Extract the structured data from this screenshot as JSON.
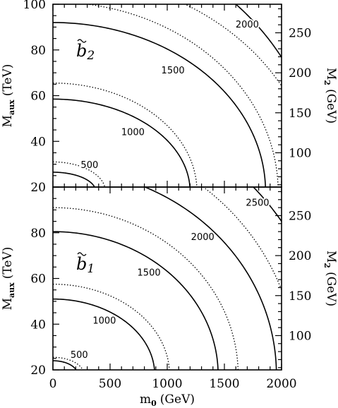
{
  "chart_data": [
    {
      "type": "line",
      "panel": "top",
      "label": "b̃2",
      "label_text": "b",
      "label_sub": "2",
      "xlabel": "",
      "ylabel": "M_aux (TeV)",
      "ylabel_main": "M",
      "ylabel_sub": "aux",
      "ylabel_unit": "(TeV)",
      "y2label": "M_2 (GeV)",
      "y2label_main": "M",
      "y2label_sub": "2",
      "y2label_unit": "(GeV)",
      "xlim": [
        0,
        2000
      ],
      "ylim": [
        20,
        100
      ],
      "yticks": [
        20,
        40,
        60,
        80,
        100
      ],
      "y2ticks": [
        100,
        150,
        200,
        250
      ],
      "y2_per_y": 2.857,
      "series": [
        {
          "style": "solid",
          "contour": "500",
          "x0": 375,
          "y0": 26.5
        },
        {
          "style": "dotted",
          "contour": "500",
          "x0": 460,
          "y0": 31
        },
        {
          "style": "solid",
          "contour": "1000",
          "x0": 1200,
          "y0": 58.5
        },
        {
          "style": "dotted",
          "contour": "1000",
          "x0": 1260,
          "y0": 65.5
        },
        {
          "style": "solid",
          "contour": "1500",
          "x0": 1860,
          "y0": 92
        },
        {
          "style": "dotted",
          "contour": "1500",
          "x0": 1970,
          "y0": 101
        },
        {
          "style": "solid",
          "contour": "2000",
          "x0": 2350,
          "y0": 130
        },
        {
          "style": "dotted",
          "contour": "2000",
          "x0": 2290,
          "y0": 113
        }
      ],
      "contour_labels": [
        {
          "text": "500",
          "x": 320,
          "y": 29.5
        },
        {
          "text": "1000",
          "x": 700,
          "y": 44
        },
        {
          "text": "1500",
          "x": 1050,
          "y": 71
        },
        {
          "text": "2000",
          "x": 1700,
          "y": 91
        }
      ]
    },
    {
      "type": "line",
      "panel": "bottom",
      "label": "b̃1",
      "label_text": "b",
      "label_sub": "1",
      "xlabel": "m_0 (GeV)",
      "xlabel_main": "m",
      "xlabel_sub": "0",
      "xlabel_unit": "(GeV)",
      "ylabel": "M_aux (TeV)",
      "ylabel_main": "M",
      "ylabel_sub": "aux",
      "ylabel_unit": "(TeV)",
      "y2label": "M_2 (GeV)",
      "y2label_main": "M",
      "y2label_sub": "2",
      "y2label_unit": "(GeV)",
      "xlim": [
        0,
        2000
      ],
      "ylim": [
        20,
        100
      ],
      "xticks": [
        0,
        500,
        1000,
        1500,
        2000
      ],
      "yticks": [
        20,
        40,
        60,
        80
      ],
      "y2ticks": [
        100,
        150,
        200,
        250
      ],
      "y2_per_y": 2.857,
      "series": [
        {
          "style": "solid",
          "contour": "500",
          "x0": 215,
          "y0": 24
        },
        {
          "style": "dotted",
          "contour": "500",
          "x0": 270,
          "y0": 25.5
        },
        {
          "style": "solid",
          "contour": "1000",
          "x0": 890,
          "y0": 51
        },
        {
          "style": "dotted",
          "contour": "1000",
          "x0": 1020,
          "y0": 57.5
        },
        {
          "style": "solid",
          "contour": "1500",
          "x0": 1445,
          "y0": 80.5
        },
        {
          "style": "dotted",
          "contour": "1500",
          "x0": 1620,
          "y0": 91
        },
        {
          "style": "solid",
          "contour": "2000",
          "x0": 1955,
          "y0": 108
        },
        {
          "style": "dotted",
          "contour": "2000",
          "x0": 2140,
          "y0": 122
        },
        {
          "style": "solid",
          "contour": "2500",
          "x0": 2420,
          "y0": 137
        }
      ],
      "contour_labels": [
        {
          "text": "500",
          "x": 230,
          "y": 26.5
        },
        {
          "text": "1000",
          "x": 450,
          "y": 41.5
        },
        {
          "text": "1500",
          "x": 840,
          "y": 62.5
        },
        {
          "text": "2000",
          "x": 1310,
          "y": 78
        },
        {
          "text": "2500",
          "x": 1790,
          "y": 93
        }
      ]
    }
  ]
}
